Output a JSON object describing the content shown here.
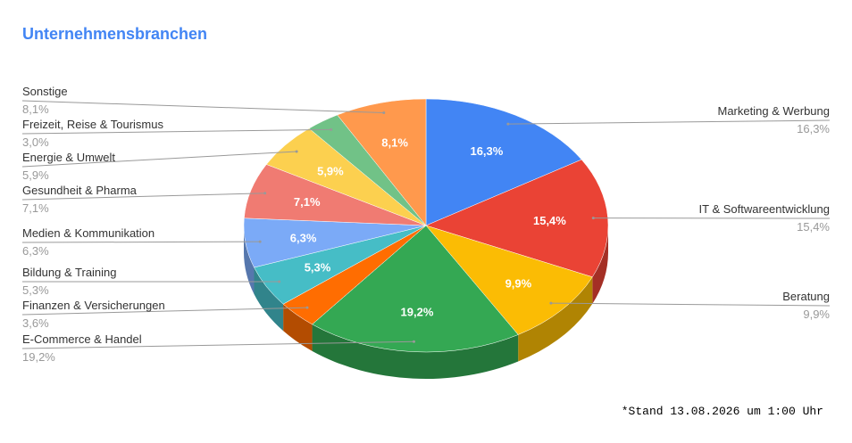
{
  "chart_data": {
    "type": "pie",
    "three_d": true,
    "title": "Unternehmensbranchen",
    "categories": [
      "Marketing & Werbung",
      "IT & Softwareentwicklung",
      "Beratung",
      "E-Commerce & Handel",
      "Finanzen & Versicherungen",
      "Bildung & Training",
      "Medien & Kommunikation",
      "Gesundheit & Pharma",
      "Energie & Umwelt",
      "Freizeit, Reise & Tourismus",
      "Sonstige"
    ],
    "values": [
      16.3,
      15.4,
      9.9,
      19.2,
      3.6,
      5.3,
      6.3,
      7.1,
      5.9,
      3.0,
      8.1
    ],
    "value_labels": [
      "16,3%",
      "15,4%",
      "9,9%",
      "19,2%",
      "3,6%",
      "5,3%",
      "6,3%",
      "7,1%",
      "5,9%",
      "3,0%",
      "8,1%"
    ],
    "colors": [
      "#4285f4",
      "#ea4335",
      "#fbbc04",
      "#34a853",
      "#ff6d01",
      "#46bdc6",
      "#7baaf7",
      "#f07b72",
      "#fcd04f",
      "#71c287",
      "#ff994d"
    ],
    "note": "*Stand 13.08.2026 um 1:00 Uhr"
  }
}
